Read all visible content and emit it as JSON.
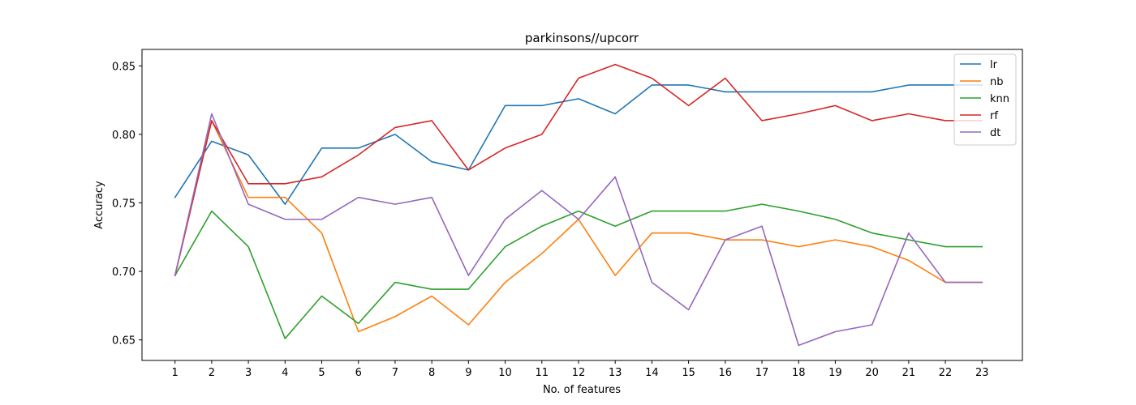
{
  "chart_data": {
    "type": "line",
    "title": "parkinsons//upcorr",
    "xlabel": "No. of features",
    "ylabel": "Accuracy",
    "x": [
      1,
      2,
      3,
      4,
      5,
      6,
      7,
      8,
      9,
      10,
      11,
      12,
      13,
      14,
      15,
      16,
      17,
      18,
      19,
      20,
      21,
      22,
      23
    ],
    "xlim": [
      0.1,
      24.1
    ],
    "ylim": [
      0.635,
      0.862
    ],
    "yticks": [
      0.65,
      0.7,
      0.75,
      0.8,
      0.85
    ],
    "ytick_labels": [
      "0.65",
      "0.70",
      "0.75",
      "0.80",
      "0.85"
    ],
    "grid": false,
    "legend_position": "top-right",
    "series": [
      {
        "name": "lr",
        "color": "#1f77b4",
        "values": [
          0.754,
          0.795,
          0.785,
          0.749,
          0.79,
          0.79,
          0.8,
          0.78,
          0.774,
          0.821,
          0.821,
          0.826,
          0.815,
          0.836,
          0.836,
          0.831,
          0.831,
          0.831,
          0.831,
          0.831,
          0.836,
          0.836,
          0.836
        ]
      },
      {
        "name": "nb",
        "color": "#ff7f0e",
        "values": [
          0.697,
          0.81,
          0.754,
          0.754,
          0.728,
          0.656,
          0.667,
          0.682,
          0.661,
          0.692,
          0.713,
          0.738,
          0.697,
          0.728,
          0.728,
          0.723,
          0.723,
          0.718,
          0.723,
          0.718,
          0.708,
          0.692,
          0.692
        ]
      },
      {
        "name": "knn",
        "color": "#2ca02c",
        "values": [
          0.697,
          0.744,
          0.718,
          0.651,
          0.682,
          0.662,
          0.692,
          0.687,
          0.687,
          0.718,
          0.733,
          0.744,
          0.733,
          0.744,
          0.744,
          0.744,
          0.749,
          0.744,
          0.738,
          0.728,
          0.723,
          0.718,
          0.718
        ]
      },
      {
        "name": "rf",
        "color": "#d62728",
        "values": [
          0.697,
          0.81,
          0.764,
          0.764,
          0.769,
          0.785,
          0.805,
          0.81,
          0.774,
          0.79,
          0.8,
          0.841,
          0.851,
          0.841,
          0.821,
          0.841,
          0.81,
          0.815,
          0.821,
          0.81,
          0.815,
          0.81,
          0.81
        ]
      },
      {
        "name": "dt",
        "color": "#9467bd",
        "values": [
          0.697,
          0.815,
          0.749,
          0.738,
          0.738,
          0.754,
          0.749,
          0.754,
          0.697,
          0.738,
          0.759,
          0.738,
          0.769,
          0.692,
          0.672,
          0.723,
          0.733,
          0.646,
          0.656,
          0.661,
          0.728,
          0.692,
          0.692
        ]
      }
    ]
  }
}
